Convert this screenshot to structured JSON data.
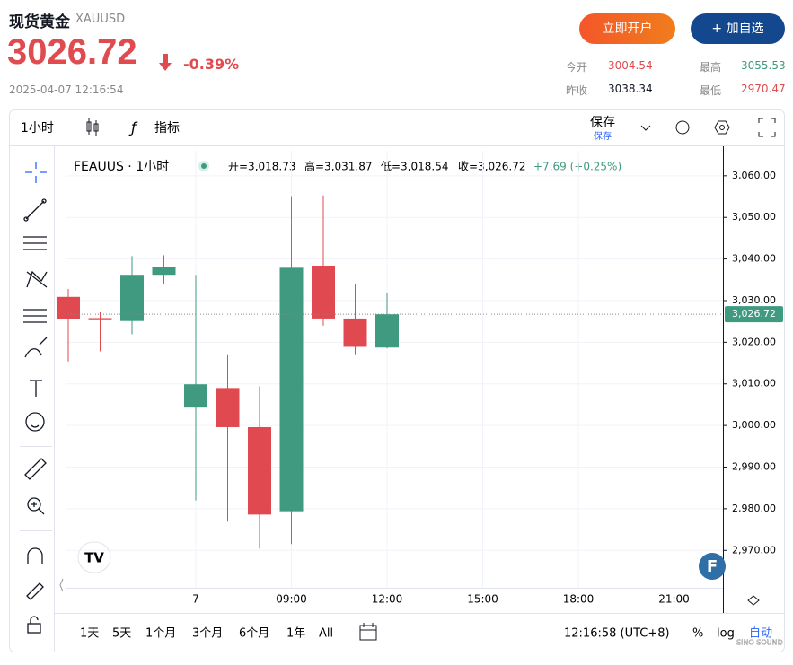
{
  "header": {
    "title": "现货黄金",
    "symbol": "XAUUSD",
    "price": "3026.72",
    "change": "-0.39%",
    "time": "2025-04-07 12:16:54",
    "buttons": [
      "立即开户",
      "+ 加自选"
    ],
    "stats": [
      {
        "label": "今开",
        "value": "3004.54"
      },
      {
        "label": "最高",
        "value": "3055.53"
      },
      {
        "label": "昨收",
        "value": "3038.34"
      },
      {
        "label": "最低",
        "value": "2970.47"
      }
    ]
  },
  "toolbar": {
    "interval": "1小时",
    "indicators": "指标",
    "save": "保存",
    "save_sub": "保存"
  },
  "legend": {
    "symbol": "FEAUUS · 1小时",
    "open": "开=3,018.73",
    "high": "高=3,031.87",
    "low": "低=3,018.54",
    "close": "收=3,026.72",
    "change": "+7.69 (+0.25%)"
  },
  "chart_data": {
    "type": "candlestick",
    "categories": [
      null,
      null,
      null,
      null,
      "7",
      null,
      null,
      "09:00",
      null,
      null,
      "12:00",
      null,
      null,
      "15:00",
      null,
      null,
      "18:00",
      null,
      null,
      "21:00",
      null
    ],
    "open": [
      3030.9,
      3025.8,
      3025.1,
      3036.2,
      3004.3,
      3009.0,
      2999.6,
      2979.4,
      3038.4,
      3025.7,
      3018.73,
      null,
      null,
      null,
      null,
      null,
      null,
      null,
      null,
      null,
      null
    ],
    "high": [
      3032.8,
      3027.2,
      3040.7,
      3040.9,
      3036.2,
      3016.9,
      3009.4,
      3055.1,
      3055.3,
      3033.9,
      3031.87,
      null,
      null,
      null,
      null,
      null,
      null,
      null,
      null,
      null,
      null
    ],
    "low": [
      3015.4,
      3017.8,
      3021.9,
      3033.9,
      2982.0,
      2976.9,
      2970.4,
      2971.5,
      3024.0,
      3016.9,
      3018.54,
      null,
      null,
      null,
      null,
      null,
      null,
      null,
      null,
      null,
      null
    ],
    "close": [
      3025.5,
      3025.3,
      3036.2,
      3038.1,
      3009.9,
      2999.6,
      2978.6,
      3037.9,
      3025.7,
      3018.9,
      3026.72,
      null,
      null,
      null,
      null,
      null,
      null,
      null,
      null,
      null,
      null
    ],
    "up_color": "#3f9a80",
    "down_color": "#e0494f",
    "ylim": [
      2961,
      3066
    ],
    "yticks": [
      {
        "value": 2970,
        "label": "2,970.00"
      },
      {
        "value": 2980,
        "label": "2,980.00"
      },
      {
        "value": 2990,
        "label": "2,990.00"
      },
      {
        "value": 3000,
        "label": "3,000.00"
      },
      {
        "value": 3010,
        "label": "3,010.00"
      },
      {
        "value": 3020,
        "label": "3,020.00"
      },
      {
        "value": 3030,
        "label": "3,030.00"
      },
      {
        "value": 3040,
        "label": "3,040.00"
      },
      {
        "value": 3050,
        "label": "3,050.00"
      },
      {
        "value": 3060,
        "label": "3,060.00"
      }
    ],
    "last_price": {
      "value": 3026.72,
      "label": "3,026.72"
    },
    "grid": true
  },
  "footer": {
    "ranges": [
      "1天",
      "5天",
      "1个月",
      "3个月",
      "6个月",
      "1年",
      "All"
    ],
    "clock": "12:16:58 (UTC+8)",
    "percent": "%",
    "log": "log",
    "auto": "自动"
  },
  "watermark": "SINO SOUND"
}
